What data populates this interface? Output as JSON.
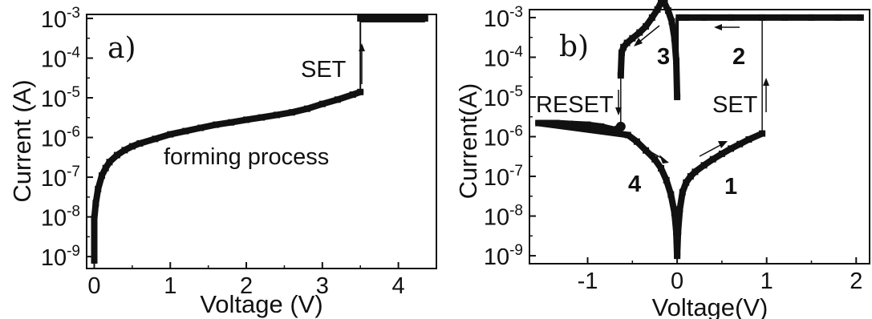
{
  "chart_data": [
    {
      "type": "scatter",
      "panel_label": "a)",
      "xlabel": "Voltage (V)",
      "ylabel": "Current (A)",
      "xlim": [
        -0.1,
        4.5
      ],
      "ylim_log10": [
        -9.3,
        -2.9
      ],
      "y_scale": "log",
      "x_ticks": [
        0,
        1,
        2,
        3,
        4
      ],
      "x_tick_labels": [
        "0",
        "1",
        "2",
        "3",
        "4"
      ],
      "y_ticks": [
        -9,
        -8,
        -7,
        -6,
        -5,
        -4,
        -3
      ],
      "y_tick_base": "10",
      "y_tick_exponents": [
        "-9",
        "-8",
        "-7",
        "-6",
        "-5",
        "-4",
        "-3"
      ],
      "annotations": {
        "set": "SET",
        "process": "forming process"
      },
      "series": [
        {
          "points": [
            [
              0.0,
              8e-10
            ],
            [
              0.0,
              9e-09
            ],
            [
              0.02,
              2.2e-08
            ],
            [
              0.05,
              5e-08
            ],
            [
              0.1,
              1.1e-07
            ],
            [
              0.15,
              1.7e-07
            ],
            [
              0.2,
              2.4e-07
            ],
            [
              0.3,
              3.6e-07
            ],
            [
              0.4,
              4.8e-07
            ],
            [
              0.5,
              6e-07
            ],
            [
              0.6,
              7.1e-07
            ],
            [
              0.8,
              9.2e-07
            ],
            [
              1.0,
              1.2e-06
            ],
            [
              1.2,
              1.45e-06
            ],
            [
              1.4,
              1.75e-06
            ],
            [
              1.6,
              2.1e-06
            ],
            [
              1.8,
              2.4e-06
            ],
            [
              2.0,
              2.8e-06
            ],
            [
              2.2,
              3.2e-06
            ],
            [
              2.4,
              3.7e-06
            ],
            [
              2.6,
              4.3e-06
            ],
            [
              2.8,
              5.3e-06
            ],
            [
              3.0,
              7e-06
            ],
            [
              3.2,
              9e-06
            ],
            [
              3.4,
              1.2e-05
            ],
            [
              3.5,
              1.4e-05
            ]
          ]
        },
        {
          "compliance": true,
          "points": [
            [
              3.5,
              0.001
            ],
            [
              3.75,
              0.001
            ],
            [
              4.0,
              0.001
            ],
            [
              4.2,
              0.001
            ],
            [
              4.35,
              0.001
            ]
          ]
        }
      ]
    },
    {
      "type": "scatter",
      "panel_label": "b)",
      "xlabel": "Voltage(V)",
      "ylabel": "Current(A)",
      "xlim": [
        -1.65,
        2.15
      ],
      "ylim_log10": [
        -9.2,
        -2.8
      ],
      "y_scale": "log",
      "x_ticks": [
        -1,
        0,
        1,
        2
      ],
      "x_tick_labels": [
        "-1",
        "0",
        "1",
        "2"
      ],
      "y_ticks": [
        -9,
        -8,
        -7,
        -6,
        -5,
        -4,
        -3
      ],
      "y_tick_base": "10",
      "y_tick_exponents": [
        "-9",
        "-8",
        "-7",
        "-6",
        "-5",
        "-4",
        "-3"
      ],
      "annotations": {
        "set": "SET",
        "reset": "RESET",
        "sweep_numbers": [
          "1",
          "2",
          "3",
          "4"
        ]
      },
      "series": [
        {
          "name": "1",
          "points": [
            [
              0.0,
              1e-09
            ],
            [
              0.01,
              4e-09
            ],
            [
              0.03,
              1.5e-08
            ],
            [
              0.06,
              4e-08
            ],
            [
              0.1,
              7e-08
            ],
            [
              0.15,
              1e-07
            ],
            [
              0.2,
              1.3e-07
            ],
            [
              0.3,
              1.9e-07
            ],
            [
              0.4,
              2.7e-07
            ],
            [
              0.5,
              3.7e-07
            ],
            [
              0.6,
              5e-07
            ],
            [
              0.7,
              6.5e-07
            ],
            [
              0.8,
              8.5e-07
            ],
            [
              0.95,
              1.2e-06
            ]
          ]
        },
        {
          "name": "2",
          "points": [
            [
              2.05,
              0.001
            ],
            [
              1.8,
              0.001
            ],
            [
              1.5,
              0.001
            ],
            [
              1.2,
              0.001
            ],
            [
              0.95,
              0.001
            ],
            [
              0.6,
              0.001
            ],
            [
              0.3,
              0.001
            ],
            [
              0.1,
              0.001
            ],
            [
              0.02,
              0.001
            ]
          ]
        },
        {
          "name": "3",
          "points": [
            [
              0.0,
              1e-05
            ],
            [
              -0.01,
              8e-05
            ],
            [
              -0.03,
              0.0003
            ],
            [
              -0.06,
              0.0008
            ],
            [
              -0.1,
              0.0015
            ],
            [
              -0.14,
              0.0023
            ],
            [
              -0.18,
              0.0024
            ],
            [
              -0.22,
              0.0016
            ],
            [
              -0.28,
              0.001
            ],
            [
              -0.35,
              0.0006
            ],
            [
              -0.42,
              0.00042
            ],
            [
              -0.5,
              0.0003
            ],
            [
              -0.56,
              0.00023
            ],
            [
              -0.6,
              0.00018
            ],
            [
              -0.62,
              0.00013
            ],
            [
              -0.63,
              3.5e-05
            ]
          ]
        },
        {
          "name": "4",
          "points": [
            [
              -0.63,
              1.8e-06
            ],
            [
              -0.7,
              1.5e-06
            ],
            [
              -0.85,
              1.8e-06
            ],
            [
              -1.0,
              2e-06
            ],
            [
              -1.2,
              2.1e-06
            ],
            [
              -1.35,
              2.2e-06
            ],
            [
              -1.55,
              2.2e-06
            ],
            [
              -0.55,
              1.1e-06
            ],
            [
              -0.45,
              7.5e-07
            ],
            [
              -0.35,
              4.5e-07
            ],
            [
              -0.25,
              2.7e-07
            ],
            [
              -0.18,
              1.6e-07
            ],
            [
              -0.12,
              8e-08
            ],
            [
              -0.07,
              3.5e-08
            ],
            [
              -0.03,
              1.2e-08
            ],
            [
              -0.01,
              4e-09
            ],
            [
              0.0,
              1e-09
            ]
          ]
        }
      ]
    }
  ]
}
